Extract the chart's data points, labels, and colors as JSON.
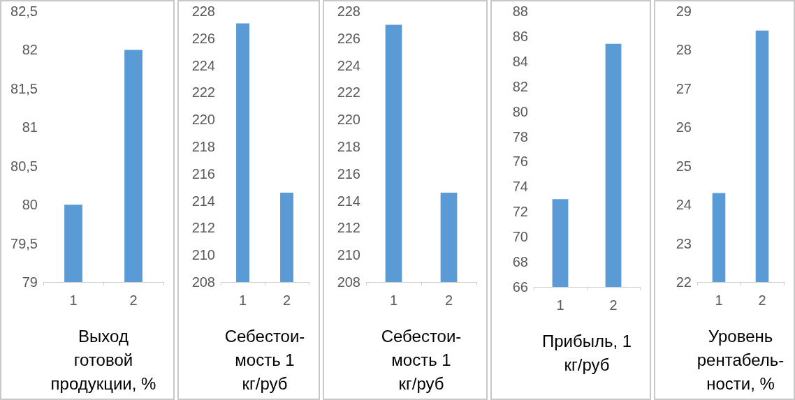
{
  "chart_data": [
    {
      "type": "bar",
      "xlabel": "Выход\nготовой\nпродукции, %",
      "categories": [
        "1",
        "2"
      ],
      "values": [
        80,
        82
      ],
      "color": "#5b9bd5",
      "ylim": [
        79,
        82.5
      ],
      "yticks": [
        79,
        {
          "value": 79.5,
          "label": "79,5"
        },
        80,
        {
          "value": 80.5,
          "label": "80,5"
        },
        81,
        {
          "value": 81.5,
          "label": "81,5"
        },
        82,
        {
          "value": 82.5,
          "label": "82,5"
        }
      ],
      "grid": false
    },
    {
      "type": "bar",
      "xlabel": "Себестои-\nмость 1\nкг/руб",
      "categories": [
        "1",
        "2"
      ],
      "values": [
        227.1,
        214.6
      ],
      "color": "#5b9bd5",
      "ylim": [
        208,
        228
      ],
      "yticks": [
        208,
        210,
        212,
        214,
        216,
        218,
        220,
        222,
        224,
        226,
        228
      ],
      "grid": false
    },
    {
      "type": "bar",
      "xlabel": "Себестои-\nмость 1\nкг/руб",
      "categories": [
        "1",
        "2"
      ],
      "values": [
        227,
        214.6
      ],
      "color": "#5b9bd5",
      "ylim": [
        208,
        228
      ],
      "yticks": [
        208,
        210,
        212,
        214,
        216,
        218,
        220,
        222,
        224,
        226,
        228
      ],
      "grid": false
    },
    {
      "type": "bar",
      "xlabel": "Прибыль, 1\nкг/руб",
      "categories": [
        "1",
        "2"
      ],
      "values": [
        73,
        85.4
      ],
      "color": "#5b9bd5",
      "ylim": [
        66,
        88
      ],
      "yticks": [
        66,
        68,
        70,
        72,
        74,
        76,
        78,
        80,
        82,
        84,
        86,
        88
      ],
      "grid": false
    },
    {
      "type": "bar",
      "xlabel": "Уровень\nрентабель-\nности, %",
      "categories": [
        "1",
        "2"
      ],
      "values": [
        24.3,
        28.5
      ],
      "color": "#5b9bd5",
      "ylim": [
        22,
        29
      ],
      "yticks": [
        22,
        23,
        24,
        25,
        26,
        27,
        28,
        29
      ],
      "grid": false
    }
  ]
}
